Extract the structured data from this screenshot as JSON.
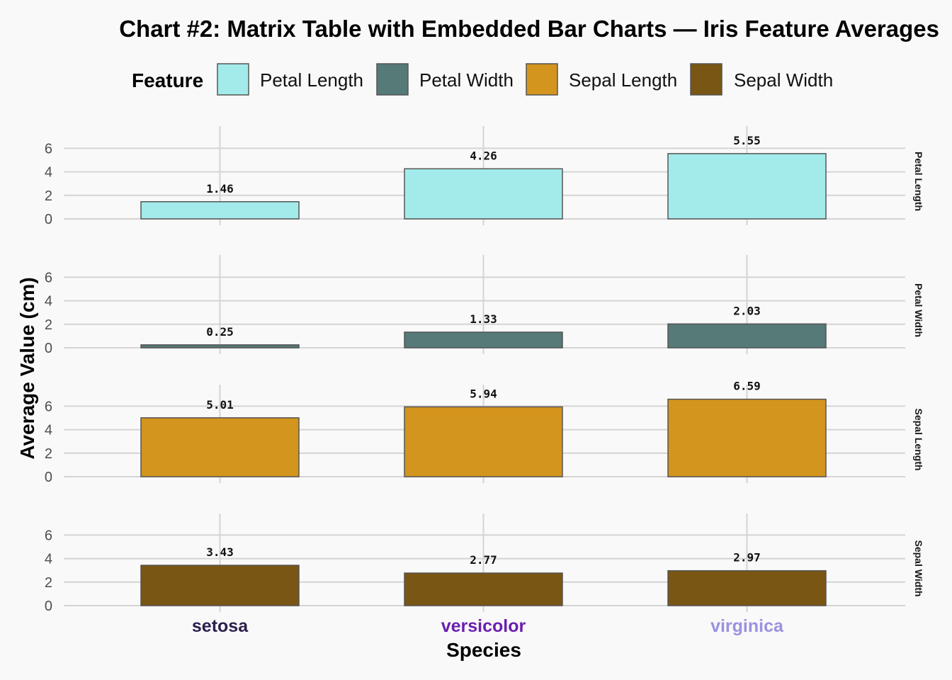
{
  "chart_data": {
    "type": "bar",
    "title": "Chart #2: Matrix Table with Embedded Bar Charts — Iris Feature Averages",
    "xlabel": "Species",
    "ylabel": "Average Value (cm)",
    "ylim": [
      0,
      7
    ],
    "yticks": [
      0,
      2,
      4,
      6
    ],
    "grid": true,
    "legend": {
      "title": "Feature",
      "placement": "top",
      "entries": [
        "Petal Length",
        "Petal Width",
        "Sepal Length",
        "Sepal Width"
      ]
    },
    "categories": [
      "setosa",
      "versicolor",
      "virginica"
    ],
    "category_colors": [
      "#2b1f4e",
      "#6a1fb0",
      "#9a92e0"
    ],
    "series": [
      {
        "name": "Petal Length",
        "color": "#a3ebea",
        "values": [
          1.46,
          4.26,
          5.55
        ],
        "labels": [
          "1.46",
          "4.26",
          "5.55"
        ]
      },
      {
        "name": "Petal Width",
        "color": "#557a78",
        "values": [
          0.25,
          1.33,
          2.03
        ],
        "labels": [
          "0.25",
          "1.33",
          "2.03"
        ]
      },
      {
        "name": "Sepal Length",
        "color": "#d3951d",
        "values": [
          5.01,
          5.94,
          6.59
        ],
        "labels": [
          "5.01",
          "5.94",
          "6.59"
        ]
      },
      {
        "name": "Sepal Width",
        "color": "#795613",
        "values": [
          3.43,
          2.77,
          2.97
        ],
        "labels": [
          "3.43",
          "2.77",
          "2.97"
        ]
      }
    ]
  }
}
